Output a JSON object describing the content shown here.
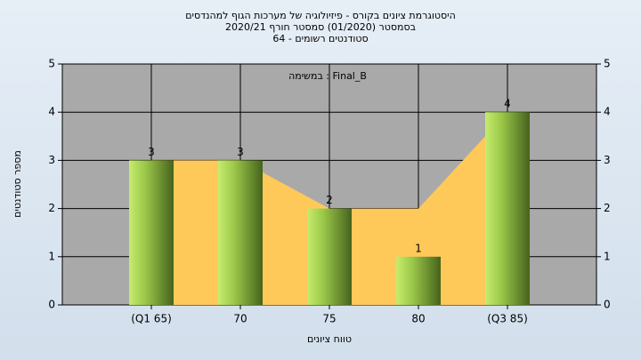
{
  "chart_data": {
    "type": "bar",
    "title": "היסטוגרמת ציונים בקורס - פיזיולוגיה של מערכות הגוף למהנדסים",
    "subtitle": [
      "בסמסטר  (01/2020)  סמסטר חורף 2020/21",
      "סטודנטים רשומים - 64"
    ],
    "annotation": "במשימה : Final_B",
    "x_label": "טווח ציונים",
    "y_label": "מספר סטודנטים",
    "categories": [
      "(Q1 65)",
      "70",
      "75",
      "80",
      "(Q3 85)"
    ],
    "series": [
      {
        "type": "bar",
        "color": "#8fb845",
        "values": [
          3,
          3,
          2,
          1,
          4
        ]
      },
      {
        "type": "area",
        "color": "#ffc95a",
        "values": [
          3,
          3,
          2,
          2,
          4
        ]
      }
    ],
    "ylim": [
      0,
      5
    ],
    "yticks": [
      0,
      1,
      2,
      3,
      4,
      5
    ],
    "grid": true
  }
}
